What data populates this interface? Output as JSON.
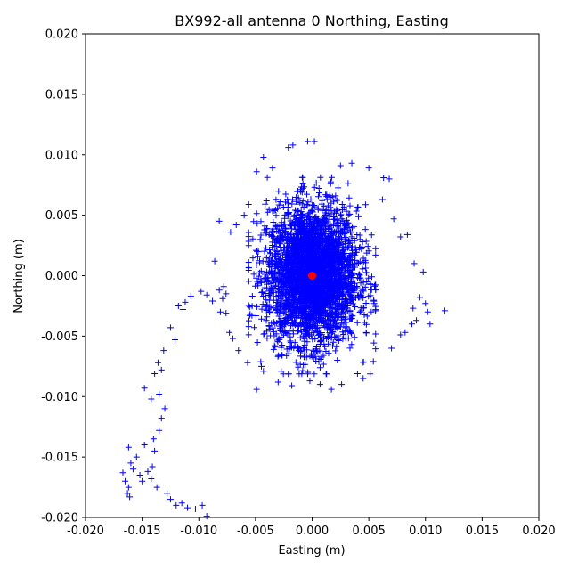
{
  "chart_data": {
    "type": "scatter",
    "title": "BX992-all antenna 0 Northing, Easting",
    "xlabel": "Easting (m)",
    "ylabel": "Northing (m)",
    "xlim": [
      -0.02,
      0.02
    ],
    "ylim": [
      -0.02,
      0.02
    ],
    "xticks": [
      "-0.020",
      "-0.015",
      "-0.010",
      "-0.005",
      "0.000",
      "0.005",
      "0.010",
      "0.015",
      "0.020"
    ],
    "yticks": [
      "-0.020",
      "-0.015",
      "-0.010",
      "-0.005",
      "0.000",
      "0.005",
      "0.010",
      "0.015",
      "0.020"
    ],
    "grid": false,
    "colors": {
      "measurements": "#0000ff",
      "reference": "#ff0000"
    },
    "series": [
      {
        "marker": "plus",
        "points": [
          [
            -0.0167,
            -0.0163
          ],
          [
            -0.0165,
            -0.017
          ],
          [
            -0.0162,
            -0.0175
          ],
          [
            -0.0163,
            -0.018
          ],
          [
            -0.0161,
            -0.0183
          ],
          [
            -0.0158,
            -0.016
          ],
          [
            -0.016,
            -0.0155
          ],
          [
            -0.0162,
            -0.0142
          ],
          [
            -0.0155,
            -0.015
          ],
          [
            -0.0152,
            -0.0165
          ],
          [
            -0.015,
            -0.017
          ],
          [
            -0.0148,
            -0.014
          ],
          [
            -0.0145,
            -0.0162
          ],
          [
            -0.0142,
            -0.0168
          ],
          [
            -0.0141,
            -0.0158
          ],
          [
            -0.014,
            -0.0135
          ],
          [
            -0.0139,
            -0.0145
          ],
          [
            -0.0137,
            -0.0175
          ],
          [
            -0.0135,
            -0.0128
          ],
          [
            -0.0133,
            -0.0118
          ],
          [
            -0.013,
            -0.011
          ],
          [
            -0.0128,
            -0.018
          ],
          [
            -0.0125,
            -0.0185
          ],
          [
            -0.012,
            -0.019
          ],
          [
            -0.0115,
            -0.0188
          ],
          [
            -0.011,
            -0.0192
          ],
          [
            -0.0103,
            -0.0193
          ],
          [
            -0.0097,
            -0.019
          ],
          [
            -0.0093,
            -0.0199
          ],
          [
            -0.0148,
            -0.0093
          ],
          [
            -0.0142,
            -0.0102
          ],
          [
            -0.0139,
            -0.0081
          ],
          [
            -0.0136,
            -0.0072
          ],
          [
            -0.0135,
            -0.0098
          ],
          [
            -0.0133,
            -0.0078
          ],
          [
            -0.0131,
            -0.0062
          ],
          [
            -0.0125,
            -0.0043
          ],
          [
            -0.0121,
            -0.0053
          ],
          [
            -0.0118,
            -0.0025
          ],
          [
            -0.0114,
            -0.0028
          ],
          [
            -0.0112,
            -0.0022
          ],
          [
            -0.0107,
            -0.0017
          ],
          [
            -0.0098,
            -0.0013
          ],
          [
            -0.0093,
            -0.0016
          ],
          [
            -0.0088,
            -0.0021
          ],
          [
            -0.0082,
            -0.0012
          ],
          [
            -0.0081,
            -0.003
          ],
          [
            -0.0079,
            -0.0019
          ],
          [
            -0.0078,
            -0.0009
          ],
          [
            -0.0076,
            -0.0015
          ],
          [
            -0.0086,
            0.0012
          ],
          [
            -0.0082,
            0.0045
          ],
          [
            -0.0072,
            0.0036
          ],
          [
            -0.0067,
            0.0042
          ],
          [
            -0.006,
            0.005
          ],
          [
            -0.0049,
            0.0086
          ],
          [
            -0.0043,
            0.0098
          ],
          [
            -0.0035,
            0.0089
          ],
          [
            -0.0021,
            0.0106
          ],
          [
            -0.0017,
            0.0108
          ],
          [
            -0.0004,
            0.0111
          ],
          [
            0.0002,
            0.0111
          ],
          [
            0.0025,
            0.0091
          ],
          [
            0.0035,
            0.0093
          ],
          [
            0.005,
            0.0089
          ],
          [
            0.0063,
            0.0081
          ],
          [
            0.0068,
            0.008
          ],
          [
            0.0062,
            0.0063
          ],
          [
            0.0072,
            0.0047
          ],
          [
            0.0078,
            0.0032
          ],
          [
            0.0084,
            0.0034
          ],
          [
            0.009,
            0.001
          ],
          [
            0.0095,
            -0.0018
          ],
          [
            0.0098,
            0.0003
          ],
          [
            0.01,
            -0.0023
          ],
          [
            0.0102,
            -0.003
          ],
          [
            0.0092,
            -0.0037
          ],
          [
            0.0089,
            -0.0027
          ],
          [
            0.0082,
            -0.0047
          ],
          [
            0.0088,
            -0.004
          ],
          [
            0.0117,
            -0.0029
          ],
          [
            0.0104,
            -0.004
          ],
          [
            0.0078,
            -0.0049
          ],
          [
            0.007,
            -0.006
          ],
          [
            0.0054,
            -0.0071
          ],
          [
            0.0045,
            -0.0085
          ],
          [
            0.004,
            -0.0081
          ],
          [
            0.0026,
            -0.009
          ],
          [
            0.0017,
            -0.0094
          ],
          [
            0.0007,
            -0.009
          ],
          [
            -0.0002,
            -0.0087
          ],
          [
            -0.0018,
            -0.0091
          ],
          [
            -0.003,
            -0.0088
          ],
          [
            -0.0049,
            -0.0094
          ],
          [
            -0.0043,
            -0.0079
          ],
          [
            -0.0057,
            -0.0072
          ],
          [
            -0.0065,
            -0.0062
          ],
          [
            -0.007,
            -0.0052
          ],
          [
            -0.0073,
            -0.0047
          ],
          [
            -0.0076,
            -0.0031
          ]
        ],
        "cluster": {
          "center": [
            0.0,
            0.0
          ],
          "sigma_x": 0.002,
          "sigma_y": 0.0028
        }
      },
      {
        "marker": "dot",
        "points": [
          [
            0.0,
            0.0
          ]
        ]
      }
    ]
  }
}
